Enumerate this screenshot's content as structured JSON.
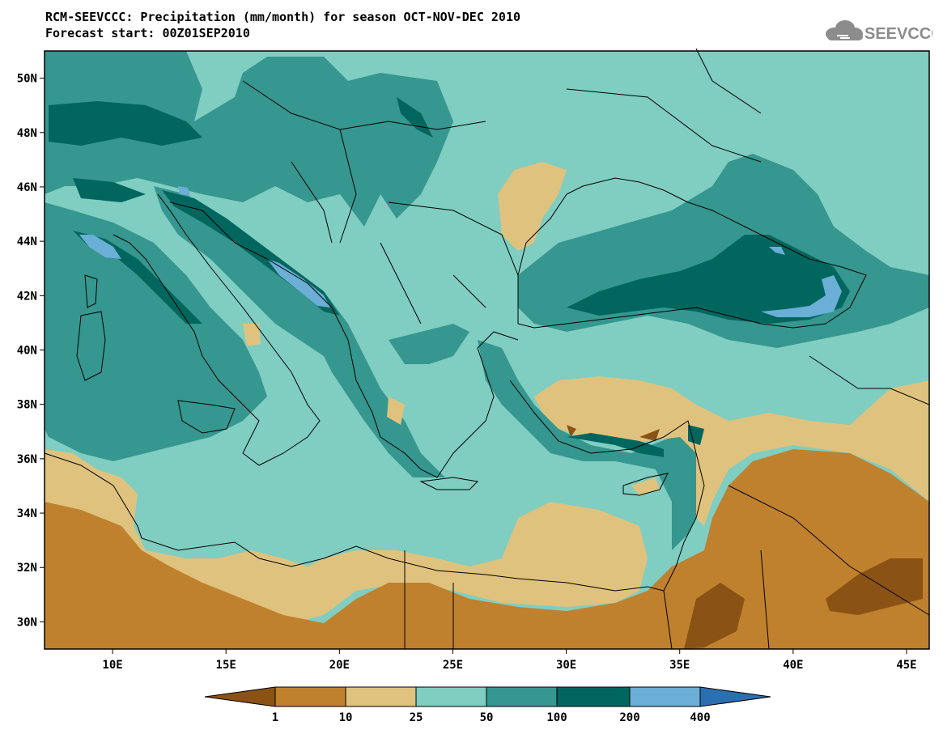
{
  "header": {
    "title_line_1": "RCM-SEEVCCC: Precipitation (mm/month) for season OCT-NOV-DEC 2010",
    "title_line_2": "Forecast start: 00Z01SEP2010"
  },
  "logo": {
    "text": "SEEVCCC",
    "icon": "cloud-icon",
    "color": "#8c8c8c"
  },
  "map": {
    "lon_range": [
      7,
      46
    ],
    "lat_range": [
      29,
      51
    ],
    "lat_ticks": [
      {
        "value": 30,
        "label": "30N"
      },
      {
        "value": 32,
        "label": "32N"
      },
      {
        "value": 34,
        "label": "34N"
      },
      {
        "value": 36,
        "label": "36N"
      },
      {
        "value": 38,
        "label": "38N"
      },
      {
        "value": 40,
        "label": "40N"
      },
      {
        "value": 42,
        "label": "42N"
      },
      {
        "value": 44,
        "label": "44N"
      },
      {
        "value": 46,
        "label": "46N"
      },
      {
        "value": 48,
        "label": "48N"
      },
      {
        "value": 50,
        "label": "50N"
      }
    ],
    "lon_ticks": [
      {
        "value": 10,
        "label": "10E"
      },
      {
        "value": 15,
        "label": "15E"
      },
      {
        "value": 20,
        "label": "20E"
      },
      {
        "value": 25,
        "label": "25E"
      },
      {
        "value": 30,
        "label": "30E"
      },
      {
        "value": 35,
        "label": "35E"
      },
      {
        "value": 40,
        "label": "40E"
      },
      {
        "value": 45,
        "label": "45E"
      }
    ]
  },
  "colorbar": {
    "boundaries": [
      "1",
      "10",
      "25",
      "50",
      "100",
      "200",
      "400"
    ],
    "colors": {
      "below_1": "#8a5214",
      "c1_10": "#bf812d",
      "c10_25": "#dfc27d",
      "c25_50": "#80cdc1",
      "c50_100": "#35978f",
      "c100_200": "#01665e",
      "c200_400": "#6baed6",
      "above_400": "#2b6fb0"
    }
  }
}
